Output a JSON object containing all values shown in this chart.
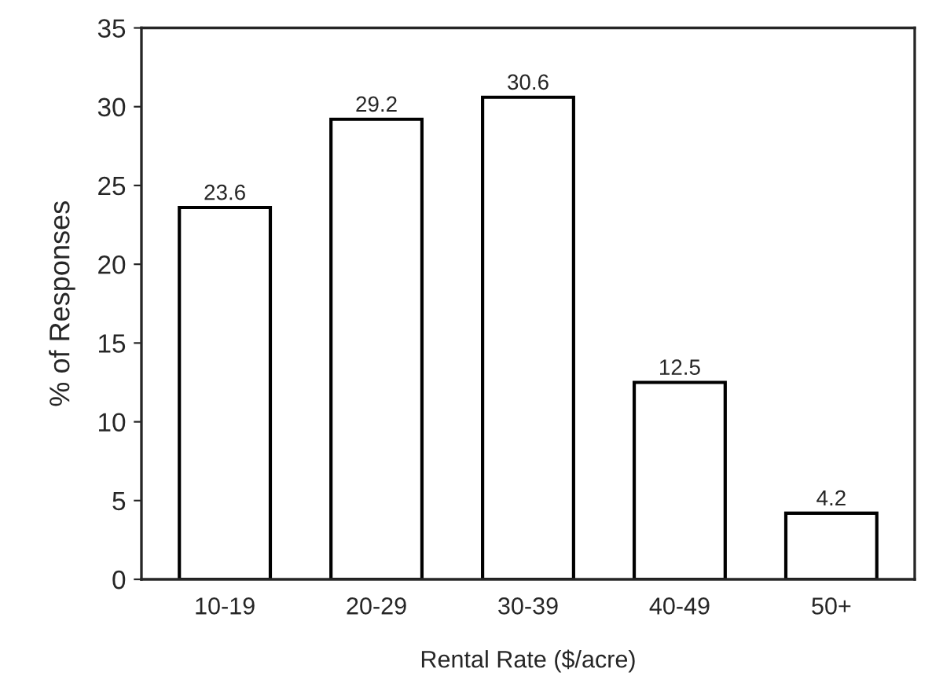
{
  "chart_data": {
    "type": "bar",
    "xlabel": "Rental Rate ($/acre)",
    "ylabel": "% of Responses",
    "categories": [
      "10-19",
      "20-29",
      "30-39",
      "40-49",
      "50+"
    ],
    "values": [
      23.6,
      29.2,
      30.6,
      12.5,
      4.2
    ],
    "color": "#ffffff",
    "ylim": [
      0,
      35
    ],
    "yticks": [
      0,
      5,
      10,
      15,
      20,
      25,
      30,
      35
    ],
    "data_labels": true,
    "grid": false,
    "legend": false
  }
}
